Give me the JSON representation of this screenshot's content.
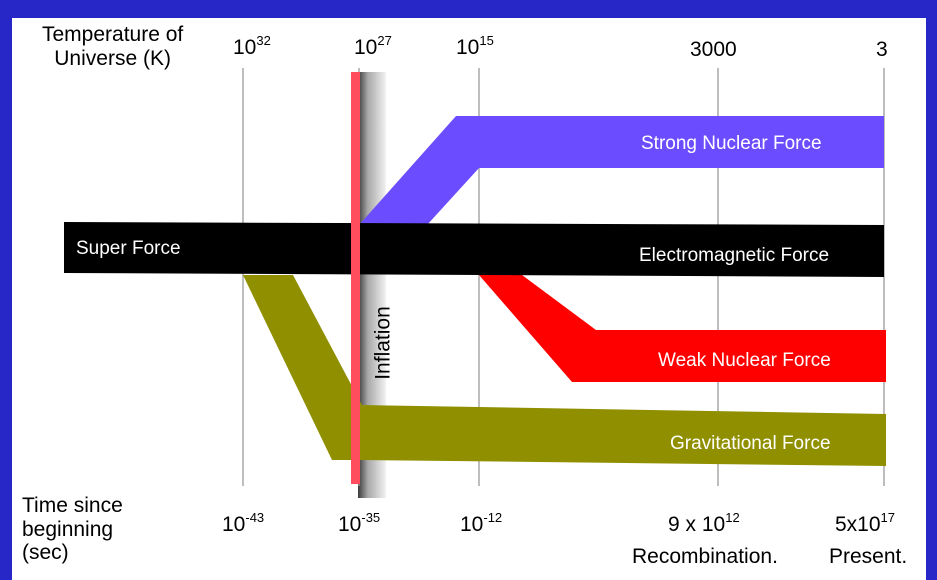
{
  "temperature_label": [
    "Temperature of",
    "Universe (K)"
  ],
  "time_label": [
    "Time since",
    "beginning",
    "(sec)"
  ],
  "temperatures": [
    {
      "base": "10",
      "exp": "32"
    },
    {
      "base": "10",
      "exp": "27"
    },
    {
      "base": "10",
      "exp": "15"
    },
    {
      "base": "3000",
      "exp": ""
    },
    {
      "base": "3",
      "exp": ""
    }
  ],
  "times": [
    {
      "base": "10",
      "exp": "-43"
    },
    {
      "base": "10",
      "exp": "-35"
    },
    {
      "base": "10",
      "exp": "-12"
    },
    {
      "base": "9 x 10",
      "exp": "12"
    },
    {
      "base": "5x10",
      "exp": "17"
    }
  ],
  "epochs": [
    "Recombination.",
    "Present."
  ],
  "forces": {
    "super": "Super Force",
    "strong": "Strong Nuclear Force",
    "em": "Electromagnetic Force",
    "weak": "Weak Nuclear Force",
    "grav": "Gravitational Force"
  },
  "inflation_label": "Inflation",
  "colors": {
    "background": "#2727c8",
    "strong": "#6b4dff",
    "em": "#000000",
    "weak": "#ff0000",
    "grav": "#8f8f00",
    "inflation_line": "#ff4d5e"
  }
}
